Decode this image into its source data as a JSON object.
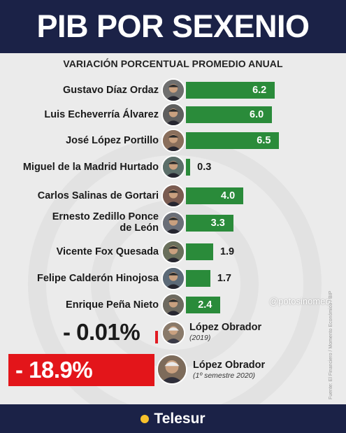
{
  "header": {
    "title": "PIB POR SEXENIO"
  },
  "chart_data": {
    "type": "bar",
    "orientation": "horizontal",
    "subtitle": "VARIACIÓN PORCENTUAL PROMEDIO ANUAL",
    "categories": [
      "Gustavo Díaz Ordaz",
      "Luis Echeverría Álvarez",
      "José López Portillo",
      "Miguel de la Madrid Hurtado",
      "Carlos Salinas de Gortari",
      "Ernesto Zedillo Ponce de León",
      "Vicente Fox Quesada",
      "Felipe Calderón Hinojosa",
      "Enrique Peña Nieto"
    ],
    "values": [
      6.2,
      6.0,
      6.5,
      0.3,
      4.0,
      3.3,
      1.9,
      1.7,
      2.4
    ],
    "value_labels": [
      "6.2",
      "6.0",
      "6.5",
      "0.3",
      "4.0",
      "3.3",
      "1.9",
      "1.7",
      "2.4"
    ],
    "name_lines": [
      [
        "Gustavo Díaz Ordaz"
      ],
      [
        "Luis Echeverría Álvarez"
      ],
      [
        "José López Portillo"
      ],
      [
        "Miguel de la Madrid Hurtado"
      ],
      [
        "Carlos Salinas de Gortari"
      ],
      [
        "Ernesto Zedillo Ponce",
        "de León"
      ],
      [
        "Vicente Fox Quesada"
      ],
      [
        "Felipe Calderón Hinojosa"
      ],
      [
        "Enrique Peña Nieto"
      ]
    ],
    "bar_color": "#2a8b3a",
    "highlights": [
      {
        "value": -0.01,
        "value_label": "- 0.01%",
        "name": "López Obrador",
        "period": "(2019)",
        "color": "#e11b22"
      },
      {
        "value": -18.9,
        "value_label": "- 18.9%",
        "name": "López Obrador",
        "period": "(1º semestre 2020)",
        "color": "#e3151a"
      }
    ]
  },
  "watermark": "@potosinomeq",
  "source": "Fuente: El Financiero / Momento Económico / BIP",
  "footer": {
    "brand": "Telesur"
  },
  "colors": {
    "navy": "#1b2247",
    "green": "#2a8b3a",
    "red": "#e3151a",
    "panel": "#ebebeb",
    "logo_dot": "#f7c12b"
  }
}
